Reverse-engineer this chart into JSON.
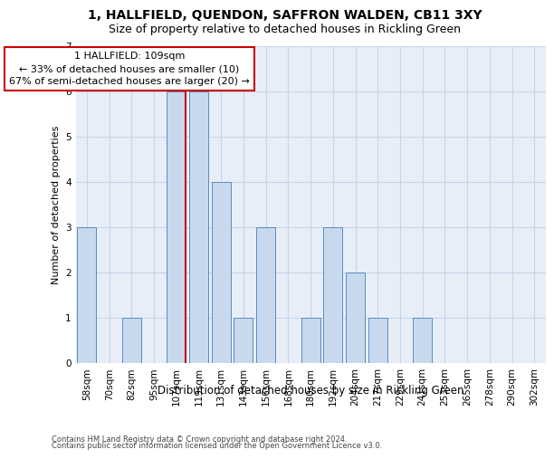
{
  "title": "1, HALLFIELD, QUENDON, SAFFRON WALDEN, CB11 3XY",
  "subtitle": "Size of property relative to detached houses in Rickling Green",
  "xlabel": "Distribution of detached houses by size in Rickling Green",
  "ylabel": "Number of detached properties",
  "footer1": "Contains HM Land Registry data © Crown copyright and database right 2024.",
  "footer2": "Contains public sector information licensed under the Open Government Licence v3.0.",
  "annotation_title": "1 HALLFIELD: 109sqm",
  "annotation_line1": "← 33% of detached houses are smaller (10)",
  "annotation_line2": "67% of semi-detached houses are larger (20) →",
  "bar_color": "#c8d9ee",
  "bar_edge_color": "#5a8cc0",
  "ref_line_color": "#cc0000",
  "annotation_box_edge": "#cc0000",
  "categories": [
    "58sqm",
    "70sqm",
    "82sqm",
    "95sqm",
    "107sqm",
    "119sqm",
    "131sqm",
    "143sqm",
    "156sqm",
    "168sqm",
    "180sqm",
    "192sqm",
    "204sqm",
    "217sqm",
    "229sqm",
    "241sqm",
    "253sqm",
    "265sqm",
    "278sqm",
    "290sqm",
    "302sqm"
  ],
  "values": [
    3,
    0,
    1,
    0,
    6,
    6,
    4,
    1,
    3,
    0,
    1,
    3,
    2,
    1,
    0,
    1,
    0,
    0,
    0,
    0,
    0
  ],
  "ref_bar_index": 4,
  "ylim": [
    0,
    7
  ],
  "yticks": [
    0,
    1,
    2,
    3,
    4,
    5,
    6,
    7
  ],
  "grid_color": "#c8d4e8",
  "bg_color": "#e8eef8",
  "title_fontsize": 10,
  "subtitle_fontsize": 9,
  "ylabel_fontsize": 8,
  "xlabel_fontsize": 8.5,
  "tick_fontsize": 7.5,
  "ann_fontsize": 8
}
